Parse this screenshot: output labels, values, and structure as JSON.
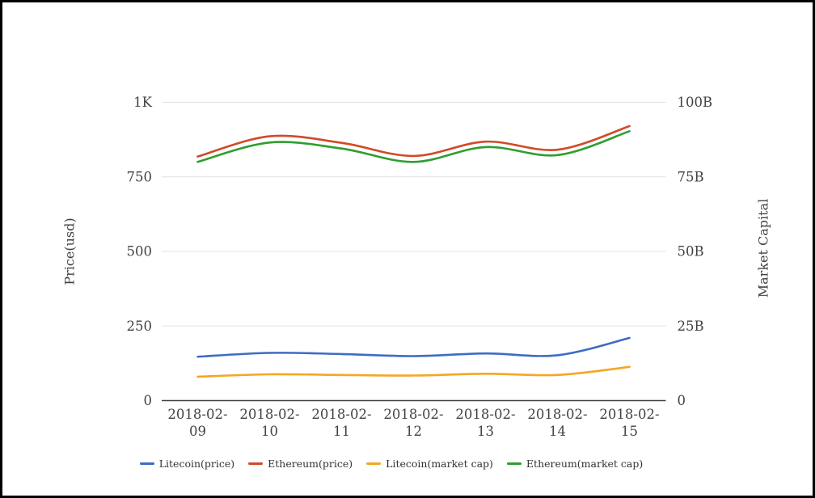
{
  "page": {
    "background_color": "#ffffff",
    "frame_border_color": "#000000"
  },
  "chart_data": {
    "type": "line",
    "title": "",
    "categories": [
      "2018-02-09",
      "2018-02-10",
      "2018-02-11",
      "2018-02-12",
      "2018-02-13",
      "2018-02-14",
      "2018-02-15"
    ],
    "series": [
      {
        "name": "Litecoin(price)",
        "axis": "left",
        "color": "#3D6CC4",
        "values": [
          147,
          160,
          156,
          149,
          158,
          152,
          210
        ]
      },
      {
        "name": "Ethereum(price)",
        "axis": "left",
        "color": "#D14A28",
        "values": [
          818,
          886,
          864,
          820,
          868,
          841,
          920
        ]
      },
      {
        "name": "Litecoin(market cap)",
        "axis": "right",
        "color": "#F5A623",
        "values": [
          8.0,
          8.8,
          8.6,
          8.4,
          9.0,
          8.6,
          11.3
        ]
      },
      {
        "name": "Ethereum(market cap)",
        "axis": "right",
        "color": "#2E9E2F",
        "values": [
          80,
          86.5,
          84.5,
          80,
          85,
          82.3,
          90.3
        ]
      }
    ],
    "left_axis": {
      "title": "Price(usd)",
      "min": 0,
      "max": 1000,
      "ticks": [
        {
          "label": "0",
          "value": 0
        },
        {
          "label": "250",
          "value": 250
        },
        {
          "label": "500",
          "value": 500
        },
        {
          "label": "750",
          "value": 750
        },
        {
          "label": "1K",
          "value": 1000
        }
      ]
    },
    "right_axis": {
      "title": "Market Capital",
      "min": 0,
      "max": 100,
      "unit": "B",
      "ticks": [
        {
          "label": "0",
          "value": 0
        },
        {
          "label": "25B",
          "value": 25
        },
        {
          "label": "50B",
          "value": 50
        },
        {
          "label": "75B",
          "value": 75
        },
        {
          "label": "100B",
          "value": 100
        }
      ]
    },
    "grid": true,
    "gridline_color": "#E0E0E0",
    "baseline_color": "#424242",
    "text_color": "#424242",
    "legend_position": "bottom"
  }
}
